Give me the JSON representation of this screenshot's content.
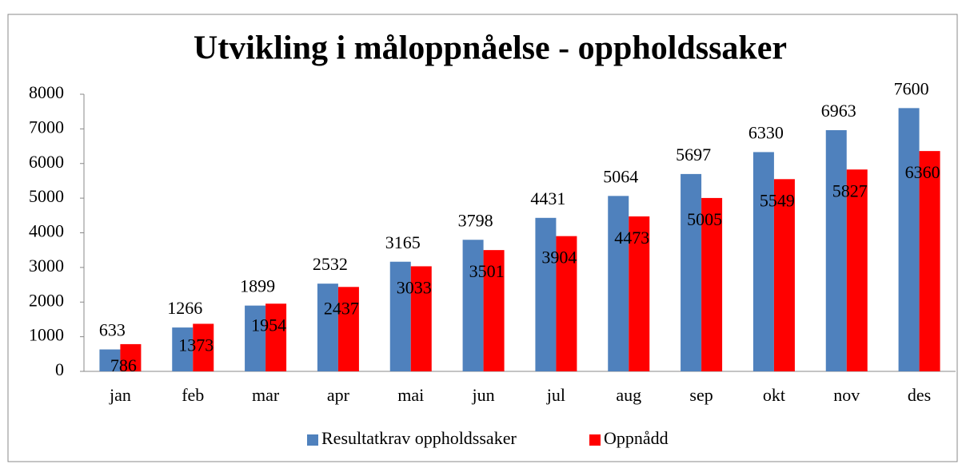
{
  "chart_data": {
    "type": "bar",
    "title": "Utvikling i måloppnåelse - oppholdssaker",
    "categories": [
      "jan",
      "feb",
      "mar",
      "apr",
      "mai",
      "jun",
      "jul",
      "aug",
      "sep",
      "okt",
      "nov",
      "des"
    ],
    "series": [
      {
        "name": "Resultatkrav oppholdssaker",
        "color": "#4f81bd",
        "values": [
          633,
          1266,
          1899,
          2532,
          3165,
          3798,
          4431,
          5064,
          5697,
          6330,
          6963,
          7600
        ]
      },
      {
        "name": "Oppnådd",
        "color": "#ff0000",
        "values": [
          786,
          1373,
          1954,
          2437,
          3033,
          3501,
          3904,
          4473,
          5005,
          5549,
          5827,
          6360
        ]
      }
    ],
    "ylim": [
      0,
      8000
    ],
    "yticks": [
      0,
      1000,
      2000,
      3000,
      4000,
      5000,
      6000,
      7000,
      8000
    ],
    "legend": "bottom"
  }
}
